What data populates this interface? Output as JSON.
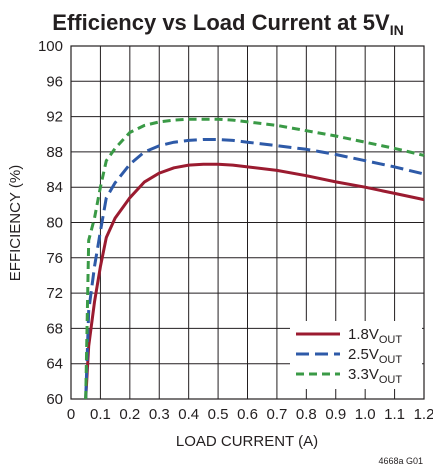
{
  "chart_data": {
    "type": "line",
    "title": "Efficiency vs Load Current at 5V",
    "title_subscript": "IN",
    "xlabel": "LOAD CURRENT (A)",
    "ylabel": "EFFICIENCY (%)",
    "xlim": [
      0,
      1.2
    ],
    "ylim": [
      60,
      100
    ],
    "x_ticks": [
      0,
      0.1,
      0.2,
      0.3,
      0.4,
      0.5,
      0.6,
      0.7,
      0.8,
      0.9,
      1.0,
      1.1,
      1.2
    ],
    "x_tick_labels": [
      "0",
      "0.1",
      "0.2",
      "0.3",
      "0.4",
      "0.5",
      "0.6",
      "0.7",
      "0.8",
      "0.9",
      "1.0",
      "1.1",
      "1.2"
    ],
    "y_ticks": [
      60,
      64,
      68,
      72,
      76,
      80,
      84,
      88,
      92,
      96,
      100
    ],
    "y_tick_labels": [
      "60",
      "64",
      "68",
      "72",
      "76",
      "80",
      "84",
      "88",
      "92",
      "96",
      "100"
    ],
    "grid": true,
    "legend_position": "bottom-right",
    "figure_code": "4668a G01",
    "series": [
      {
        "name": "1.8V",
        "name_subscript": "OUT",
        "color": "#9b1b30",
        "dash": "solid",
        "x": [
          0.05,
          0.06,
          0.08,
          0.1,
          0.12,
          0.15,
          0.2,
          0.25,
          0.3,
          0.35,
          0.4,
          0.45,
          0.5,
          0.55,
          0.6,
          0.7,
          0.8,
          0.9,
          1.0,
          1.1,
          1.2
        ],
        "y": [
          60,
          66,
          71,
          75,
          78.3,
          80.5,
          82.8,
          84.6,
          85.6,
          86.2,
          86.5,
          86.6,
          86.6,
          86.5,
          86.3,
          85.9,
          85.3,
          84.6,
          84.0,
          83.3,
          82.6
        ]
      },
      {
        "name": "2.5V",
        "name_subscript": "OUT",
        "color": "#2e5aa8",
        "dash": "dashed",
        "x": [
          0.05,
          0.06,
          0.08,
          0.1,
          0.12,
          0.15,
          0.2,
          0.25,
          0.3,
          0.35,
          0.4,
          0.45,
          0.5,
          0.55,
          0.6,
          0.7,
          0.8,
          0.9,
          1.0,
          1.1,
          1.2
        ],
        "y": [
          60,
          70,
          75,
          79,
          82.8,
          84.5,
          86.6,
          88.0,
          88.7,
          89.1,
          89.3,
          89.4,
          89.4,
          89.3,
          89.1,
          88.7,
          88.3,
          87.7,
          87.0,
          86.3,
          85.5
        ]
      },
      {
        "name": "3.3V",
        "name_subscript": "OUT",
        "color": "#3a9a46",
        "dash": "dashed",
        "x": [
          0.05,
          0.06,
          0.08,
          0.1,
          0.12,
          0.15,
          0.2,
          0.25,
          0.3,
          0.35,
          0.4,
          0.45,
          0.5,
          0.55,
          0.6,
          0.7,
          0.8,
          0.9,
          1.0,
          1.1,
          1.2
        ],
        "y": [
          60,
          78,
          80.5,
          84,
          87,
          88.4,
          90.2,
          91.0,
          91.4,
          91.6,
          91.7,
          91.7,
          91.7,
          91.6,
          91.4,
          91.0,
          90.4,
          89.8,
          89.1,
          88.4,
          87.6
        ]
      }
    ]
  }
}
